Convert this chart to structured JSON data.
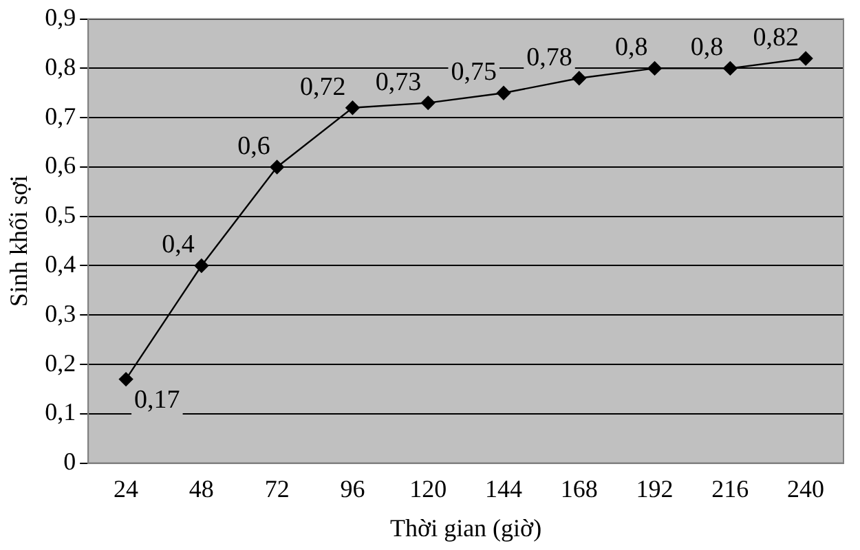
{
  "chart_data": {
    "type": "line",
    "xlabel": "Thời gian (giờ)",
    "ylabel": "Sinh khối sợi",
    "categories": [
      "24",
      "48",
      "72",
      "96",
      "120",
      "144",
      "168",
      "192",
      "216",
      "240"
    ],
    "series": [
      {
        "color": "#000000",
        "values": [
          0.17,
          0.4,
          0.6,
          0.72,
          0.73,
          0.75,
          0.78,
          0.8,
          0.8,
          0.82
        ],
        "value_labels": [
          "0,17",
          "0,4",
          "0,6",
          "0,72",
          "0,73",
          "0,75",
          "0,78",
          "0,8",
          "0,8",
          "0,82"
        ]
      }
    ],
    "ylim": [
      0,
      0.9
    ],
    "yticks": [
      {
        "value": 0,
        "label": "0"
      },
      {
        "value": 0.1,
        "label": "0,1"
      },
      {
        "value": 0.2,
        "label": "0,2"
      },
      {
        "value": 0.3,
        "label": "0,3"
      },
      {
        "value": 0.4,
        "label": "0,4"
      },
      {
        "value": 0.5,
        "label": "0,5"
      },
      {
        "value": 0.6,
        "label": "0,6"
      },
      {
        "value": 0.7,
        "label": "0,7"
      },
      {
        "value": 0.8,
        "label": "0,8"
      },
      {
        "value": 0.9,
        "label": "0,9"
      }
    ],
    "grid": "y",
    "legend": false,
    "marker": "diamond",
    "line_style": "solid"
  }
}
